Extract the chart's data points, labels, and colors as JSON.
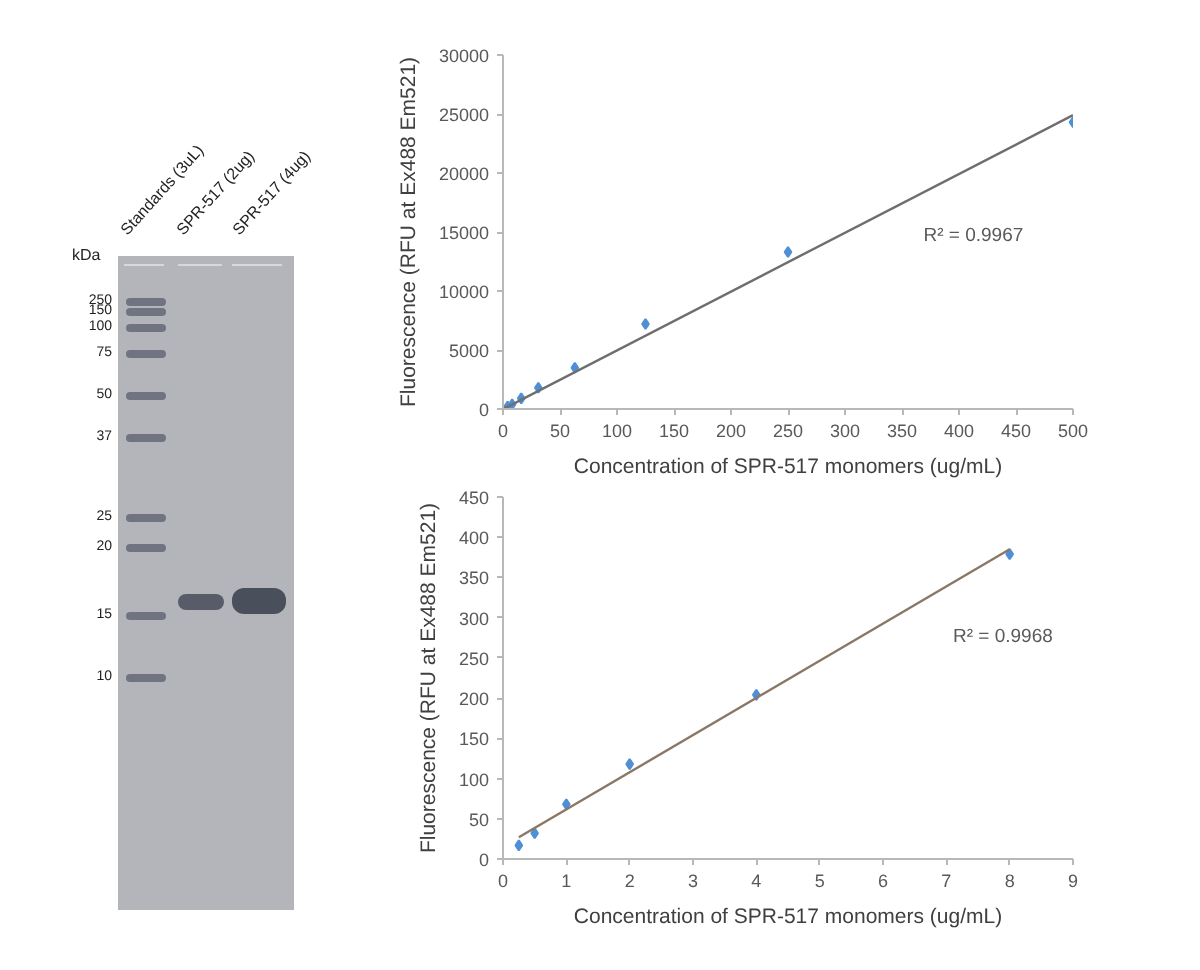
{
  "chart_data": [
    {
      "type": "other",
      "categories": [
        "Standards (3uL)",
        "SPR-517 (2ug)",
        "SPR-517 (4ug)"
      ],
      "ylabel": "kDa",
      "annotations": [
        "250",
        "150",
        "100",
        "75",
        "50",
        "37",
        "25",
        "20",
        "15",
        "10"
      ]
    },
    {
      "type": "scatter",
      "xlabel": "Concentration of SPR-517 monomers (ug/mL)",
      "ylabel": "Fluorescence (RFU at Ex488 Em521)",
      "xlim": [
        0,
        500
      ],
      "xticks": [
        0,
        50,
        100,
        150,
        200,
        250,
        300,
        350,
        400,
        450,
        500
      ],
      "ylim": [
        0,
        30000
      ],
      "yticks": [
        0,
        5000,
        10000,
        15000,
        20000,
        25000,
        30000
      ],
      "series": [
        {
          "type": "scatter",
          "color": "#4f8fd6",
          "marker": "diamond",
          "x": [
            4,
            8,
            16,
            31,
            63,
            125,
            250,
            500
          ],
          "values": [
            200,
            400,
            900,
            1800,
            3500,
            7200,
            13300,
            24300
          ]
        },
        {
          "type": "line",
          "color": "#6e6e6e",
          "x": [
            0.25,
            500
          ],
          "values": [
            0,
            24900
          ]
        }
      ],
      "annotations": [
        "R² = 0.9967"
      ]
    },
    {
      "type": "scatter",
      "xlabel": "Concentration of SPR-517 monomers (ug/mL)",
      "ylabel": "Fluorescence (RFU at Ex488 Em521)",
      "xlim": [
        0,
        9
      ],
      "xticks": [
        0,
        1,
        2,
        3,
        4,
        5,
        6,
        7,
        8,
        9
      ],
      "ylim": [
        0,
        450
      ],
      "yticks": [
        0,
        50,
        100,
        150,
        200,
        250,
        300,
        350,
        400,
        450
      ],
      "series": [
        {
          "type": "scatter",
          "color": "#4f8fd6",
          "marker": "diamond",
          "x": [
            0.25,
            0.5,
            1,
            2,
            4,
            8
          ],
          "values": [
            17,
            32,
            68,
            118,
            204,
            379
          ]
        },
        {
          "type": "line",
          "color": "#8b7765",
          "x": [
            0.25,
            8
          ],
          "values": [
            27,
            385
          ]
        }
      ],
      "annotations": [
        "R² = 0.9968"
      ]
    }
  ]
}
